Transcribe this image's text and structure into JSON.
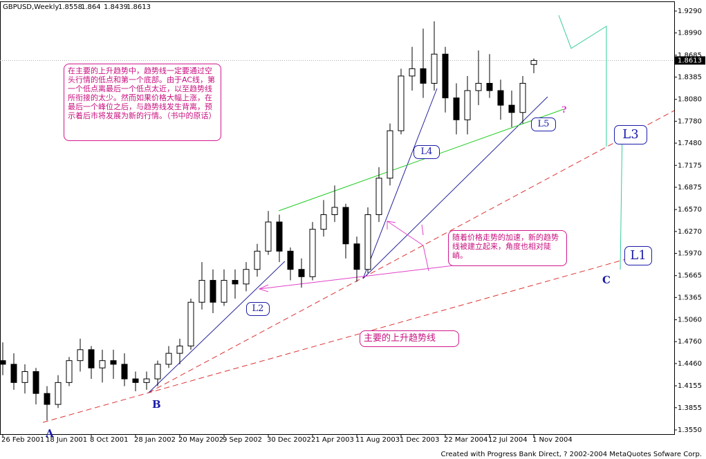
{
  "chart_data": {
    "type": "candlestick",
    "title": "GBPUSD,Weekly",
    "ylim": [
      1.3474,
      1.9413
    ],
    "yticks": [
      {
        "value": 1.929,
        "label": "1.9290"
      },
      {
        "value": 1.899,
        "label": "1.8990"
      },
      1.8685,
      1.8385,
      {
        "value": 1.808,
        "label": "1.8080"
      },
      {
        "value": 1.778,
        "label": "1.7780"
      },
      {
        "value": 1.748,
        "label": "1.7480"
      },
      1.7175,
      1.6875,
      {
        "value": 1.657,
        "label": "1.6570"
      },
      {
        "value": 1.627,
        "label": "1.6270"
      },
      {
        "value": 1.597,
        "label": "1.5970"
      },
      1.5665,
      1.5365,
      {
        "value": 1.506,
        "label": "1.5060"
      },
      {
        "value": 1.476,
        "label": "1.4760"
      },
      {
        "value": 1.446,
        "label": "1.4460"
      },
      1.4155,
      1.3855,
      {
        "value": 1.355,
        "label": "1.3550"
      }
    ],
    "xticks": [
      "26 Feb 2001",
      "18 Jun 2001",
      "8 Oct 2001",
      "28 Jan 2002",
      "20 May 2002",
      "9 Sep 2002",
      "30 Dec 2002",
      "21 Apr 2003",
      "11 Aug 2003",
      "1 Dec 2003",
      "22 Mar 2004",
      "12 Jul 2004",
      "1 Nov 2004"
    ],
    "candles": [
      {
        "date": "26 Feb 2001",
        "open": 1.45,
        "high": 1.475,
        "low": 1.43,
        "close": 1.445
      },
      {
        "date": "26 Mar 2001",
        "open": 1.445,
        "high": 1.46,
        "low": 1.41,
        "close": 1.42
      },
      {
        "date": "23 Apr 2001",
        "open": 1.42,
        "high": 1.445,
        "low": 1.405,
        "close": 1.435
      },
      {
        "date": "21 May 2001",
        "open": 1.435,
        "high": 1.44,
        "low": 1.39,
        "close": 1.405
      },
      {
        "date": "18 Jun 2001",
        "open": 1.405,
        "high": 1.415,
        "low": 1.368,
        "close": 1.39
      },
      {
        "date": "16 Jul 2001",
        "open": 1.39,
        "high": 1.43,
        "low": 1.385,
        "close": 1.42
      },
      {
        "date": "13 Aug 2001",
        "open": 1.42,
        "high": 1.455,
        "low": 1.415,
        "close": 1.45
      },
      {
        "date": "10 Sep 2001",
        "open": 1.45,
        "high": 1.48,
        "low": 1.435,
        "close": 1.465
      },
      {
        "date": "8 Oct 2001",
        "open": 1.465,
        "high": 1.47,
        "low": 1.425,
        "close": 1.44
      },
      {
        "date": "5 Nov 2001",
        "open": 1.44,
        "high": 1.465,
        "low": 1.42,
        "close": 1.45
      },
      {
        "date": "3 Dec 2001",
        "open": 1.45,
        "high": 1.465,
        "low": 1.425,
        "close": 1.445
      },
      {
        "date": "31 Dec 2001",
        "open": 1.445,
        "high": 1.46,
        "low": 1.415,
        "close": 1.425
      },
      {
        "date": "28 Jan 2002",
        "open": 1.425,
        "high": 1.435,
        "low": 1.408,
        "close": 1.42
      },
      {
        "date": "25 Feb 2002",
        "open": 1.42,
        "high": 1.435,
        "low": 1.41,
        "close": 1.425
      },
      {
        "date": "25 Mar 2002",
        "open": 1.425,
        "high": 1.45,
        "low": 1.415,
        "close": 1.445
      },
      {
        "date": "22 Apr 2002",
        "open": 1.445,
        "high": 1.47,
        "low": 1.44,
        "close": 1.46
      },
      {
        "date": "20 May 2002",
        "open": 1.46,
        "high": 1.48,
        "low": 1.445,
        "close": 1.47
      },
      {
        "date": "17 Jun 2002",
        "open": 1.47,
        "high": 1.535,
        "low": 1.465,
        "close": 1.53
      },
      {
        "date": "15 Jul 2002",
        "open": 1.53,
        "high": 1.585,
        "low": 1.52,
        "close": 1.56
      },
      {
        "date": "12 Aug 2002",
        "open": 1.56,
        "high": 1.575,
        "low": 1.515,
        "close": 1.53
      },
      {
        "date": "9 Sep 2002",
        "open": 1.53,
        "high": 1.575,
        "low": 1.525,
        "close": 1.56
      },
      {
        "date": "7 Oct 2002",
        "open": 1.56,
        "high": 1.575,
        "low": 1.535,
        "close": 1.555
      },
      {
        "date": "4 Nov 2002",
        "open": 1.555,
        "high": 1.585,
        "low": 1.545,
        "close": 1.575
      },
      {
        "date": "2 Dec 2002",
        "open": 1.575,
        "high": 1.61,
        "low": 1.565,
        "close": 1.6
      },
      {
        "date": "30 Dec 2002",
        "open": 1.6,
        "high": 1.655,
        "low": 1.595,
        "close": 1.64
      },
      {
        "date": "27 Jan 2003",
        "open": 1.64,
        "high": 1.65,
        "low": 1.585,
        "close": 1.6
      },
      {
        "date": "24 Feb 2003",
        "open": 1.6,
        "high": 1.605,
        "low": 1.56,
        "close": 1.575
      },
      {
        "date": "24 Mar 2003",
        "open": 1.575,
        "high": 1.59,
        "low": 1.55,
        "close": 1.565
      },
      {
        "date": "21 Apr 2003",
        "open": 1.565,
        "high": 1.64,
        "low": 1.56,
        "close": 1.63
      },
      {
        "date": "19 May 2003",
        "open": 1.63,
        "high": 1.67,
        "low": 1.62,
        "close": 1.65
      },
      {
        "date": "16 Jun 2003",
        "open": 1.65,
        "high": 1.69,
        "low": 1.64,
        "close": 1.66
      },
      {
        "date": "14 Jul 2003",
        "open": 1.66,
        "high": 1.665,
        "low": 1.59,
        "close": 1.61
      },
      {
        "date": "11 Aug 2003",
        "open": 1.61,
        "high": 1.62,
        "low": 1.558,
        "close": 1.575
      },
      {
        "date": "8 Sep 2003",
        "open": 1.575,
        "high": 1.66,
        "low": 1.57,
        "close": 1.65
      },
      {
        "date": "6 Oct 2003",
        "open": 1.65,
        "high": 1.715,
        "low": 1.64,
        "close": 1.7
      },
      {
        "date": "3 Nov 2003",
        "open": 1.7,
        "high": 1.775,
        "low": 1.69,
        "close": 1.765
      },
      {
        "date": "1 Dec 2003",
        "open": 1.765,
        "high": 1.85,
        "low": 1.76,
        "close": 1.84
      },
      {
        "date": "29 Dec 2003",
        "open": 1.84,
        "high": 1.88,
        "low": 1.82,
        "close": 1.85
      },
      {
        "date": "26 Jan 2004",
        "open": 1.85,
        "high": 1.905,
        "low": 1.81,
        "close": 1.83
      },
      {
        "date": "23 Feb 2004",
        "open": 1.83,
        "high": 1.915,
        "low": 1.82,
        "close": 1.87
      },
      {
        "date": "22 Mar 2004",
        "open": 1.87,
        "high": 1.88,
        "low": 1.79,
        "close": 1.81
      },
      {
        "date": "19 Apr 2004",
        "open": 1.81,
        "high": 1.83,
        "low": 1.76,
        "close": 1.78
      },
      {
        "date": "17 May 2004",
        "open": 1.78,
        "high": 1.84,
        "low": 1.76,
        "close": 1.82
      },
      {
        "date": "14 Jun 2004",
        "open": 1.82,
        "high": 1.875,
        "low": 1.8,
        "close": 1.83
      },
      {
        "date": "12 Jul 2004",
        "open": 1.83,
        "high": 1.87,
        "low": 1.81,
        "close": 1.82
      },
      {
        "date": "9 Aug 2004",
        "open": 1.82,
        "high": 1.835,
        "low": 1.78,
        "close": 1.8
      },
      {
        "date": "6 Sep 2004",
        "open": 1.8,
        "high": 1.82,
        "low": 1.77,
        "close": 1.79
      },
      {
        "date": "4 Oct 2004",
        "open": 1.79,
        "high": 1.84,
        "low": 1.775,
        "close": 1.83
      },
      {
        "date": "1 Nov 2004",
        "open": 1.8558,
        "high": 1.864,
        "low": 1.8439,
        "close": 1.8613
      }
    ],
    "annotations": [
      "在主要的上升趋势中，趋势线一定要通过空头行情的低点和第一个底部。由于AC线，第一个低点离最后一个低点太近，以至趋势线所衔接的太少。然而如果价格大幅上涨，在最后一个峰位之后，与趋势线发生背离，预示着后市将发展为新的行情。（书中的原话）",
      "随着价格走势的加速，新的趋势线被建立起来，角度也相对陡峭。",
      "主要的上升趋势线",
      "L1",
      "L2",
      "L3",
      "L4",
      "L5",
      "A",
      "B",
      "C",
      "?"
    ],
    "footer": "Created with Progress Bank Direct, ? 2002-2004 MetaQuotes Sofware Corp."
  }
}
